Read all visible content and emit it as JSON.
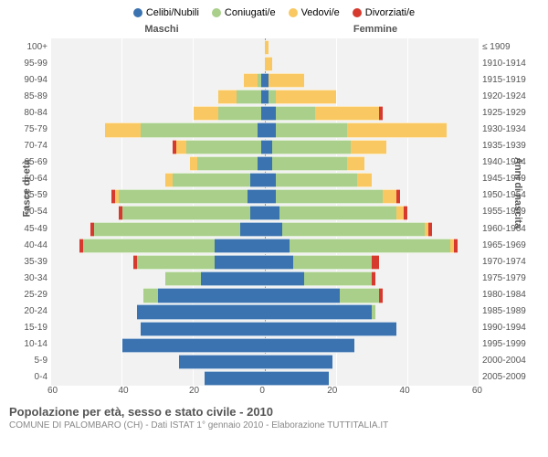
{
  "legend": [
    {
      "label": "Celibi/Nubili",
      "color": "#3b73b0"
    },
    {
      "label": "Coniugati/e",
      "color": "#a9cf8a"
    },
    {
      "label": "Vedovi/e",
      "color": "#f9c862"
    },
    {
      "label": "Divorziati/e",
      "color": "#d63a2f"
    }
  ],
  "colors": {
    "background": "#f2f2f2",
    "celibi": "#3b73b0",
    "coniugati": "#a9cf8a",
    "vedovi": "#f9c862",
    "divorziati": "#d63a2f"
  },
  "header": {
    "male": "Maschi",
    "female": "Femmine"
  },
  "axis": {
    "left_label": "Fasce di età",
    "right_label": "Anni di nascita",
    "xmax": 60,
    "xticks": [
      60,
      40,
      20,
      0,
      20,
      40,
      60
    ]
  },
  "age_bands": [
    {
      "age": "100+",
      "year": "≤ 1909"
    },
    {
      "age": "95-99",
      "year": "1910-1914"
    },
    {
      "age": "90-94",
      "year": "1915-1919"
    },
    {
      "age": "85-89",
      "year": "1920-1924"
    },
    {
      "age": "80-84",
      "year": "1925-1929"
    },
    {
      "age": "75-79",
      "year": "1930-1934"
    },
    {
      "age": "70-74",
      "year": "1935-1939"
    },
    {
      "age": "65-69",
      "year": "1940-1944"
    },
    {
      "age": "60-64",
      "year": "1945-1949"
    },
    {
      "age": "55-59",
      "year": "1950-1954"
    },
    {
      "age": "50-54",
      "year": "1955-1959"
    },
    {
      "age": "45-49",
      "year": "1960-1964"
    },
    {
      "age": "40-44",
      "year": "1965-1969"
    },
    {
      "age": "35-39",
      "year": "1970-1974"
    },
    {
      "age": "30-34",
      "year": "1975-1979"
    },
    {
      "age": "25-29",
      "year": "1980-1984"
    },
    {
      "age": "20-24",
      "year": "1985-1989"
    },
    {
      "age": "15-19",
      "year": "1990-1994"
    },
    {
      "age": "10-14",
      "year": "1995-1999"
    },
    {
      "age": "5-9",
      "year": "2000-2004"
    },
    {
      "age": "0-4",
      "year": "2005-2009"
    }
  ],
  "data": [
    {
      "m": {
        "c": 0,
        "k": 0,
        "v": 0,
        "d": 0
      },
      "f": {
        "c": 0,
        "k": 0,
        "v": 1,
        "d": 0
      }
    },
    {
      "m": {
        "c": 0,
        "k": 0,
        "v": 0,
        "d": 0
      },
      "f": {
        "c": 0,
        "k": 0,
        "v": 2,
        "d": 0
      }
    },
    {
      "m": {
        "c": 1,
        "k": 1,
        "v": 4,
        "d": 0
      },
      "f": {
        "c": 1,
        "k": 0,
        "v": 10,
        "d": 0
      }
    },
    {
      "m": {
        "c": 1,
        "k": 7,
        "v": 5,
        "d": 0
      },
      "f": {
        "c": 1,
        "k": 2,
        "v": 17,
        "d": 0
      }
    },
    {
      "m": {
        "c": 1,
        "k": 12,
        "v": 7,
        "d": 0
      },
      "f": {
        "c": 3,
        "k": 11,
        "v": 18,
        "d": 1
      }
    },
    {
      "m": {
        "c": 2,
        "k": 33,
        "v": 10,
        "d": 0
      },
      "f": {
        "c": 3,
        "k": 20,
        "v": 28,
        "d": 0
      }
    },
    {
      "m": {
        "c": 1,
        "k": 21,
        "v": 3,
        "d": 1
      },
      "f": {
        "c": 2,
        "k": 22,
        "v": 10,
        "d": 0
      }
    },
    {
      "m": {
        "c": 2,
        "k": 17,
        "v": 2,
        "d": 0
      },
      "f": {
        "c": 2,
        "k": 21,
        "v": 5,
        "d": 0
      }
    },
    {
      "m": {
        "c": 4,
        "k": 22,
        "v": 2,
        "d": 0
      },
      "f": {
        "c": 3,
        "k": 23,
        "v": 4,
        "d": 0
      }
    },
    {
      "m": {
        "c": 5,
        "k": 36,
        "v": 1,
        "d": 1
      },
      "f": {
        "c": 3,
        "k": 30,
        "v": 4,
        "d": 1
      }
    },
    {
      "m": {
        "c": 4,
        "k": 36,
        "v": 0,
        "d": 1
      },
      "f": {
        "c": 4,
        "k": 33,
        "v": 2,
        "d": 1
      }
    },
    {
      "m": {
        "c": 7,
        "k": 41,
        "v": 0,
        "d": 1
      },
      "f": {
        "c": 5,
        "k": 40,
        "v": 1,
        "d": 1
      }
    },
    {
      "m": {
        "c": 14,
        "k": 37,
        "v": 0,
        "d": 1
      },
      "f": {
        "c": 7,
        "k": 45,
        "v": 1,
        "d": 1
      }
    },
    {
      "m": {
        "c": 14,
        "k": 22,
        "v": 0,
        "d": 1
      },
      "f": {
        "c": 8,
        "k": 22,
        "v": 0,
        "d": 2
      }
    },
    {
      "m": {
        "c": 18,
        "k": 10,
        "v": 0,
        "d": 0
      },
      "f": {
        "c": 11,
        "k": 19,
        "v": 0,
        "d": 1
      }
    },
    {
      "m": {
        "c": 30,
        "k": 4,
        "v": 0,
        "d": 0
      },
      "f": {
        "c": 21,
        "k": 11,
        "v": 0,
        "d": 1
      }
    },
    {
      "m": {
        "c": 36,
        "k": 0,
        "v": 0,
        "d": 0
      },
      "f": {
        "c": 30,
        "k": 1,
        "v": 0,
        "d": 0
      }
    },
    {
      "m": {
        "c": 35,
        "k": 0,
        "v": 0,
        "d": 0
      },
      "f": {
        "c": 37,
        "k": 0,
        "v": 0,
        "d": 0
      }
    },
    {
      "m": {
        "c": 40,
        "k": 0,
        "v": 0,
        "d": 0
      },
      "f": {
        "c": 25,
        "k": 0,
        "v": 0,
        "d": 0
      }
    },
    {
      "m": {
        "c": 24,
        "k": 0,
        "v": 0,
        "d": 0
      },
      "f": {
        "c": 19,
        "k": 0,
        "v": 0,
        "d": 0
      }
    },
    {
      "m": {
        "c": 17,
        "k": 0,
        "v": 0,
        "d": 0
      },
      "f": {
        "c": 18,
        "k": 0,
        "v": 0,
        "d": 0
      }
    }
  ],
  "title": "Popolazione per età, sesso e stato civile - 2010",
  "subtitle": "COMUNE DI PALOMBARO (CH) - Dati ISTAT 1° gennaio 2010 - Elaborazione TUTTITALIA.IT"
}
